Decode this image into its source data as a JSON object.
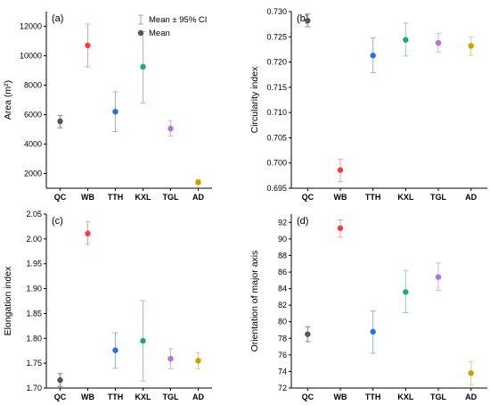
{
  "chart_data": [
    {
      "panel": "(a)",
      "type": "scatter",
      "ylabel": "Area (m²)",
      "xlabel": "",
      "categories": [
        "QC",
        "WB",
        "TTH",
        "KXL",
        "TGL",
        "AD"
      ],
      "ylim": [
        1000,
        13000
      ],
      "yticks": [
        2000,
        4000,
        6000,
        8000,
        10000,
        12000
      ],
      "tick_decimals": 0,
      "series": [
        {
          "name": "Mean",
          "values": [
            5550,
            10700,
            6200,
            9250,
            5050,
            1400
          ],
          "ci_low": [
            5100,
            9250,
            4850,
            6800,
            4550,
            1250
          ],
          "ci_high": [
            5950,
            12150,
            7550,
            11650,
            5600,
            1600
          ]
        }
      ],
      "legend": {
        "position": "top-right",
        "entries": [
          "Mean ± 95% CI",
          "Mean"
        ]
      }
    },
    {
      "panel": "(b)",
      "type": "scatter",
      "ylabel": "Circularity index",
      "xlabel": "",
      "categories": [
        "QC",
        "WB",
        "TTH",
        "KXL",
        "TGL",
        "AD"
      ],
      "ylim": [
        0.695,
        0.73
      ],
      "yticks": [
        0.695,
        0.7,
        0.705,
        0.71,
        0.715,
        0.72,
        0.725,
        0.73
      ],
      "tick_decimals": 3,
      "series": [
        {
          "values": [
            0.7282,
            0.6986,
            0.7213,
            0.7244,
            0.7238,
            0.7232
          ],
          "ci_low": [
            0.727,
            0.6963,
            0.7179,
            0.7212,
            0.722,
            0.7213
          ],
          "ci_high": [
            0.7295,
            0.7007,
            0.7248,
            0.7277,
            0.7257,
            0.725
          ]
        }
      ]
    },
    {
      "panel": "(c)",
      "type": "scatter",
      "ylabel": "Elongation index",
      "xlabel": "",
      "categories": [
        "QC",
        "WB",
        "TTH",
        "KXL",
        "TGL",
        "AD"
      ],
      "ylim": [
        1.7,
        2.05
      ],
      "yticks": [
        1.7,
        1.75,
        1.8,
        1.85,
        1.9,
        1.95,
        2.0,
        2.05
      ],
      "tick_decimals": 2,
      "series": [
        {
          "values": [
            1.716,
            2.011,
            1.776,
            1.795,
            1.759,
            1.755
          ],
          "ci_low": [
            1.703,
            1.989,
            1.74,
            1.714,
            1.739,
            1.739
          ],
          "ci_high": [
            1.729,
            2.035,
            1.811,
            1.876,
            1.779,
            1.771
          ]
        }
      ]
    },
    {
      "panel": "(d)",
      "type": "scatter",
      "ylabel": "Orientation of major axis",
      "xlabel": "",
      "categories": [
        "QC",
        "WB",
        "TTH",
        "KXL",
        "TGL",
        "AD"
      ],
      "ylim": [
        72,
        93
      ],
      "yticks": [
        72,
        74,
        76,
        78,
        80,
        82,
        84,
        86,
        88,
        90,
        92
      ],
      "tick_decimals": 0,
      "series": [
        {
          "values": [
            78.5,
            91.3,
            78.8,
            83.6,
            85.4,
            73.8
          ],
          "ci_low": [
            77.6,
            90.2,
            76.2,
            81.1,
            83.8,
            72.4
          ],
          "ci_high": [
            79.4,
            92.3,
            81.3,
            86.2,
            87.1,
            75.2
          ]
        }
      ]
    }
  ],
  "colors": {
    "categories": [
      "#555555",
      "#ee3f3f",
      "#2a6fd6",
      "#2aa477",
      "#b86ee0",
      "#d19a00"
    ],
    "errorbars": [
      "#888888",
      "#f2a0a0",
      "#8db3ec",
      "#8fd1b6",
      "#d3afee",
      "#e8cc7a"
    ],
    "axis": "#000000"
  }
}
